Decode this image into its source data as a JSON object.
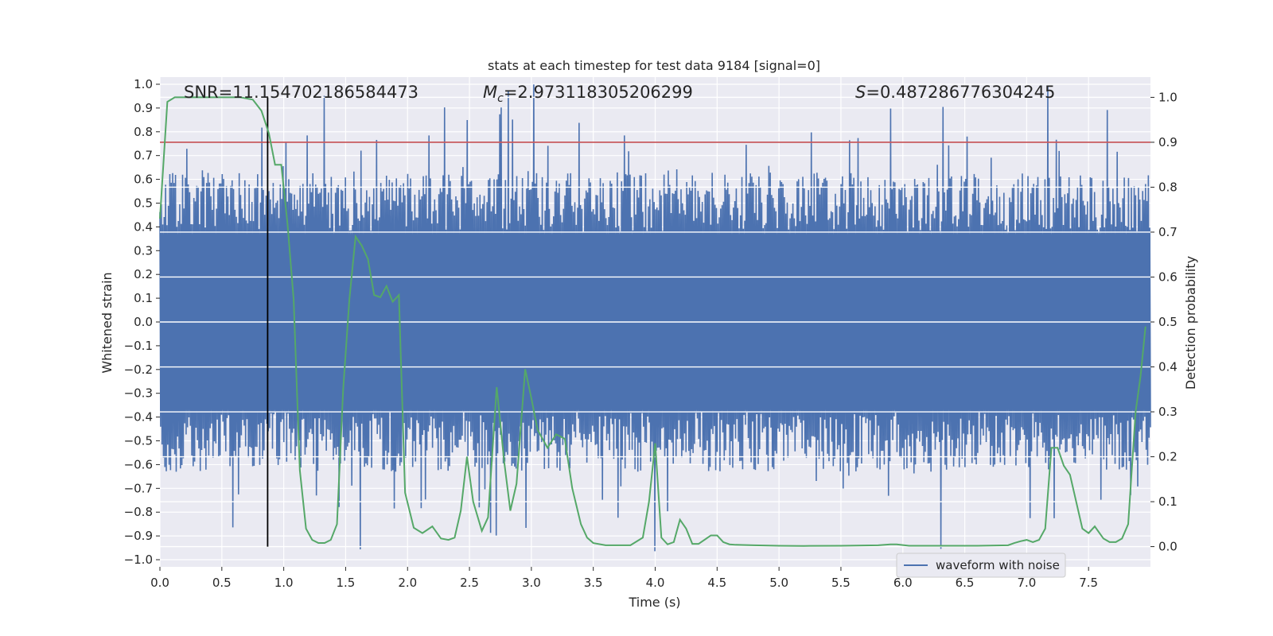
{
  "chart_data": {
    "type": "line",
    "title": "stats at each timestep for test data 9184 [signal=0]",
    "xlabel": "Time (s)",
    "ylabel_left": "Whitened strain",
    "ylabel_right": "Detection probability",
    "xlim": [
      0,
      8
    ],
    "ylim_left": [
      -1.03,
      1.03
    ],
    "ylim_right": [
      -0.045,
      1.045
    ],
    "x_ticks": [
      0.0,
      0.5,
      1.0,
      1.5,
      2.0,
      2.5,
      3.0,
      3.5,
      4.0,
      4.5,
      5.0,
      5.5,
      6.0,
      6.5,
      7.0,
      7.5
    ],
    "x_tick_labels": [
      "0.0",
      "0.5",
      "1.0",
      "1.5",
      "2.0",
      "2.5",
      "3.0",
      "3.5",
      "4.0",
      "4.5",
      "5.0",
      "5.5",
      "6.0",
      "6.5",
      "7.0",
      "7.5"
    ],
    "y_left_ticks": [
      1.0,
      0.9,
      0.8,
      0.7,
      0.6,
      0.5,
      0.4,
      0.3,
      0.2,
      0.1,
      0.0,
      -0.1,
      -0.2,
      -0.3,
      -0.4,
      -0.5,
      -0.6,
      -0.7,
      -0.8,
      -0.9,
      -1.0
    ],
    "y_left_tick_labels": [
      "1.0",
      "0.9",
      "0.8",
      "0.7",
      "0.6",
      "0.5",
      "0.4",
      "0.3",
      "0.2",
      "0.1",
      "0.0",
      "−0.1",
      "−0.2",
      "−0.3",
      "−0.4",
      "−0.5",
      "−0.6",
      "−0.7",
      "−0.8",
      "−0.9",
      "−1.0"
    ],
    "y_right_ticks": [
      1.0,
      0.9,
      0.8,
      0.7,
      0.6,
      0.5,
      0.4,
      0.3,
      0.2,
      0.1,
      0.0
    ],
    "y_right_tick_labels": [
      "1.0",
      "0.9",
      "0.8",
      "0.7",
      "0.6",
      "0.5",
      "0.4",
      "0.3",
      "0.2",
      "0.1",
      "0.0"
    ],
    "annotations": {
      "snr": "SNR=11.154702186584473",
      "mc_symbol": "M",
      "mc_sub": "c",
      "mc_value": "=2.973118305206299",
      "s_symbol": "S",
      "s_value": "=0.487286776304245"
    },
    "legend": {
      "label": "waveform with noise",
      "position": "lower-right"
    },
    "threshold": {
      "value_right": 0.9,
      "color": "#c44e52"
    },
    "marker_time": 0.87,
    "series": [
      {
        "name": "waveform with noise",
        "axis": "left",
        "color": "#4c72b0",
        "style": "dense-noise",
        "n_samples": 1400,
        "amplitude_bulk": 0.38,
        "amplitude_max": 1.0
      },
      {
        "name": "detection probability",
        "axis": "right",
        "color": "#55a868",
        "x": [
          0.0,
          0.06,
          0.12,
          0.25,
          0.4,
          0.55,
          0.65,
          0.75,
          0.82,
          0.88,
          0.93,
          0.98,
          1.03,
          1.08,
          1.13,
          1.18,
          1.23,
          1.28,
          1.33,
          1.38,
          1.43,
          1.48,
          1.53,
          1.58,
          1.63,
          1.68,
          1.73,
          1.78,
          1.83,
          1.88,
          1.93,
          1.98,
          2.05,
          2.12,
          2.2,
          2.27,
          2.33,
          2.38,
          2.43,
          2.48,
          2.53,
          2.6,
          2.65,
          2.72,
          2.78,
          2.83,
          2.88,
          2.95,
          3.0,
          3.05,
          3.13,
          3.2,
          3.27,
          3.33,
          3.4,
          3.45,
          3.5,
          3.6,
          3.8,
          3.9,
          3.95,
          4.0,
          4.05,
          4.1,
          4.15,
          4.2,
          4.25,
          4.3,
          4.35,
          4.45,
          4.5,
          4.55,
          4.6,
          4.65,
          4.8,
          5.0,
          5.2,
          5.5,
          5.8,
          5.9,
          5.95,
          6.05,
          6.6,
          6.85,
          6.9,
          6.95,
          7.0,
          7.05,
          7.1,
          7.15,
          7.2,
          7.25,
          7.3,
          7.35,
          7.4,
          7.45,
          7.5,
          7.55,
          7.62,
          7.67,
          7.72,
          7.77,
          7.82,
          7.88,
          7.92,
          7.96
        ],
        "y": [
          0.73,
          0.99,
          1.0,
          1.0,
          1.0,
          1.0,
          1.0,
          0.995,
          0.97,
          0.92,
          0.85,
          0.85,
          0.72,
          0.55,
          0.17,
          0.04,
          0.015,
          0.008,
          0.008,
          0.015,
          0.05,
          0.35,
          0.55,
          0.69,
          0.67,
          0.64,
          0.56,
          0.555,
          0.58,
          0.545,
          0.56,
          0.12,
          0.042,
          0.03,
          0.045,
          0.018,
          0.015,
          0.02,
          0.08,
          0.2,
          0.1,
          0.035,
          0.065,
          0.355,
          0.19,
          0.08,
          0.14,
          0.395,
          0.33,
          0.26,
          0.22,
          0.25,
          0.24,
          0.13,
          0.05,
          0.02,
          0.008,
          0.003,
          0.003,
          0.02,
          0.1,
          0.23,
          0.02,
          0.005,
          0.01,
          0.06,
          0.04,
          0.006,
          0.006,
          0.025,
          0.025,
          0.01,
          0.005,
          0.004,
          0.003,
          0.002,
          0.0015,
          0.002,
          0.003,
          0.005,
          0.005,
          0.002,
          0.002,
          0.003,
          0.008,
          0.012,
          0.015,
          0.01,
          0.015,
          0.04,
          0.22,
          0.22,
          0.18,
          0.16,
          0.1,
          0.04,
          0.03,
          0.045,
          0.018,
          0.01,
          0.01,
          0.018,
          0.05,
          0.3,
          0.38,
          0.49
        ]
      }
    ]
  }
}
